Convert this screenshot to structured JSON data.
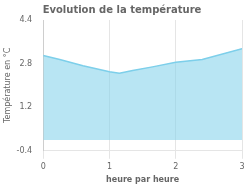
{
  "chart_data": {
    "type": "area",
    "title": "Evolution de la température",
    "xlabel": "heure par heure",
    "ylabel": "Température en °C",
    "x": [
      0,
      0.25,
      0.6,
      1.0,
      1.15,
      1.35,
      1.65,
      2.0,
      2.4,
      3.0
    ],
    "values": [
      3.1,
      2.95,
      2.72,
      2.5,
      2.45,
      2.55,
      2.68,
      2.85,
      2.95,
      3.35
    ],
    "color": "#7dcfea",
    "xlim": [
      0,
      3
    ],
    "ylim": [
      -0.4,
      4.4
    ],
    "xticks": [
      0,
      1,
      2,
      3
    ],
    "yticks": [
      -0.4,
      1.2,
      2.8,
      4.4
    ],
    "grid": "x"
  }
}
